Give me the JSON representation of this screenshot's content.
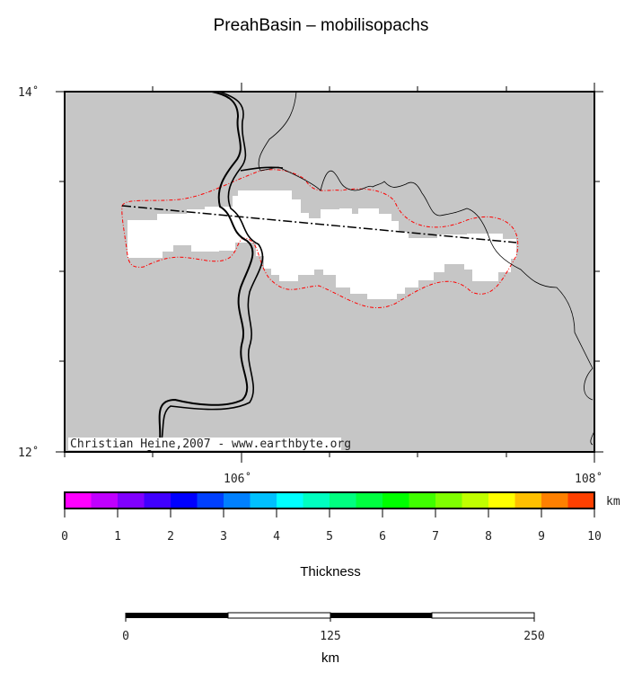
{
  "title": "PreahBasin – mobilisopachs",
  "map": {
    "lon_range": [
      105,
      108
    ],
    "lat_range": [
      12,
      14
    ],
    "lat_labels": [
      "14˚",
      "12˚"
    ],
    "lon_labels": [
      "106˚",
      "108˚"
    ],
    "land_color": "#c6c6c6",
    "basin_fill_color": "#ffffff",
    "outline_color": "#ff0000",
    "credit": "Christian Heine,2007 - www.earthbyte.org"
  },
  "colorbar": {
    "label": "Thickness",
    "unit": "km",
    "range": [
      0,
      10
    ],
    "tick_labels": [
      "0",
      "1",
      "2",
      "3",
      "4",
      "5",
      "6",
      "7",
      "8",
      "9",
      "10"
    ],
    "colors": [
      "#ff00ff",
      "#c000ff",
      "#8000ff",
      "#4000ff",
      "#0000ff",
      "#0040ff",
      "#0080ff",
      "#00c0ff",
      "#00ffff",
      "#00ffc0",
      "#00ff80",
      "#00ff40",
      "#00ff00",
      "#40ff00",
      "#80ff00",
      "#c0ff00",
      "#ffff00",
      "#ffc000",
      "#ff8000",
      "#ff4000"
    ]
  },
  "scalebar": {
    "labels": [
      "0",
      "125",
      "250"
    ],
    "unit": "km"
  }
}
